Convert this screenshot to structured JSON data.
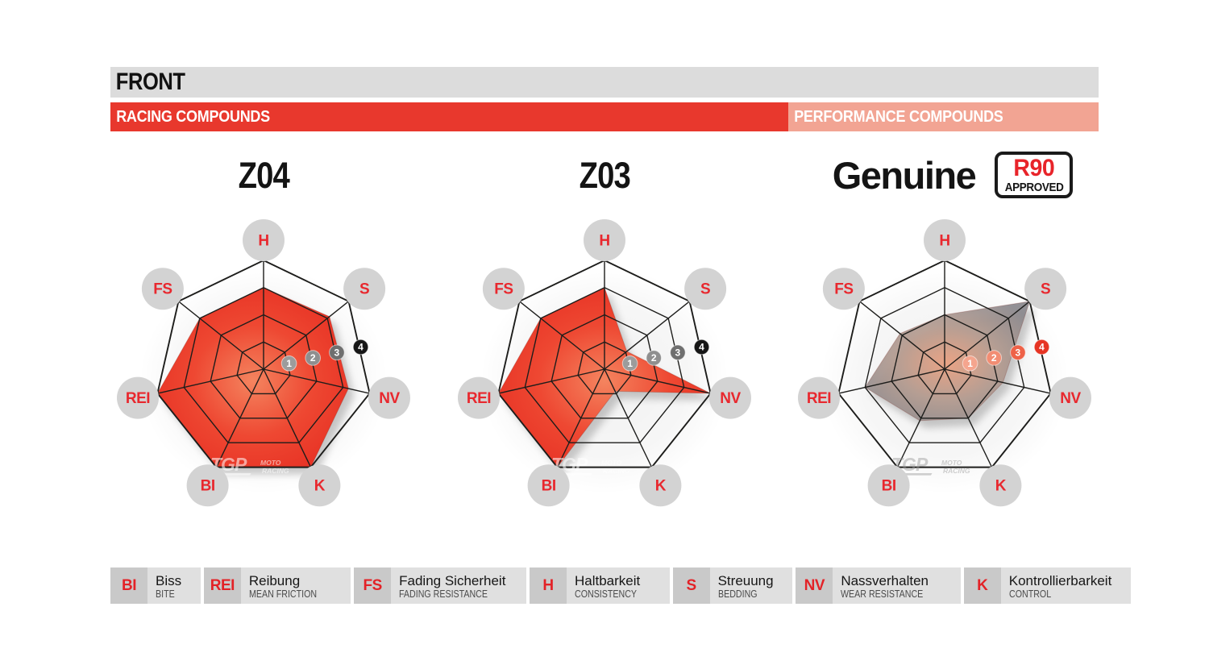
{
  "header": {
    "title": "FRONT",
    "racing_label": "RACING COMPOUNDS",
    "performance_label": "PERFORMANCE COMPOUNDS",
    "title_bar_color": "#dcdcdc",
    "racing_color": "#e8382d",
    "performance_color": "#f2a493"
  },
  "badge": {
    "line1": "R90",
    "line2": "APPROVED",
    "line1_color": "#e8242a"
  },
  "chart_data": {
    "type": "radar",
    "axes": [
      "H",
      "S",
      "NV",
      "K",
      "BI",
      "REI",
      "FS"
    ],
    "scale_ticks": [
      1,
      2,
      3,
      4
    ],
    "scale_max": 4,
    "axis_label_color": "#e8282e",
    "axis_circle_color": "#d3d3d3",
    "grid_color": "#1d1d1b",
    "charts": [
      {
        "id": "z04",
        "title": "Z04",
        "group": "RACING COMPOUNDS",
        "values": [
          3,
          3.1,
          3.2,
          4,
          4,
          4,
          3
        ],
        "fill": {
          "center": "#f4845f",
          "mid": "#ee4832",
          "edge": "#e62e22",
          "opacity": 1
        },
        "marker_colors": [
          "#9c9c9c",
          "#8f8f8f",
          "#6f6f6f",
          "#161616"
        ],
        "watermark_color": "rgba(255,255,255,0.55)"
      },
      {
        "id": "z03",
        "title": "Z03",
        "group": "RACING COMPOUNDS",
        "values": [
          3,
          1.05,
          4,
          0.9,
          4,
          4,
          3
        ],
        "fill": {
          "center": "#f4845f",
          "mid": "#ee4832",
          "edge": "#e62e22",
          "opacity": 1
        },
        "marker_colors": [
          "#9c9c9c",
          "#8f8f8f",
          "#6f6f6f",
          "#161616"
        ],
        "watermark_color": "rgba(255,255,255,0.55)"
      },
      {
        "id": "genuine",
        "title": "Genuine",
        "group": "PERFORMANCE COMPOUNDS",
        "badge": "R90 APPROVED",
        "values": [
          2,
          4,
          2.2,
          2,
          2.1,
          3,
          2.1
        ],
        "fill": {
          "center": "#eda07f",
          "mid": "#b49a8e",
          "edge": "#87858a",
          "opacity": 0.9
        },
        "marker_colors": [
          "#f5a58e",
          "#f28d73",
          "#ee6248",
          "#e63423"
        ],
        "watermark_color": "rgba(150,150,150,0.45)"
      }
    ],
    "watermark": {
      "brand": "TGP",
      "line1": "MOTO",
      "line2": "RACING"
    }
  },
  "legend": {
    "items": [
      {
        "abbr": "BI",
        "de": "Biss",
        "en": "BITE"
      },
      {
        "abbr": "REI",
        "de": "Reibung",
        "en": "MEAN FRICTION"
      },
      {
        "abbr": "FS",
        "de": "Fading Sicherheit",
        "en": "FADING RESISTANCE"
      },
      {
        "abbr": "H",
        "de": "Haltbarkeit",
        "en": "CONSISTENCY"
      },
      {
        "abbr": "S",
        "de": "Streuung",
        "en": "BEDDING"
      },
      {
        "abbr": "NV",
        "de": "Nassverhalten",
        "en": "WEAR RESISTANCE"
      },
      {
        "abbr": "K",
        "de": "Kontrollierbarkeit",
        "en": "CONTROL"
      }
    ]
  }
}
